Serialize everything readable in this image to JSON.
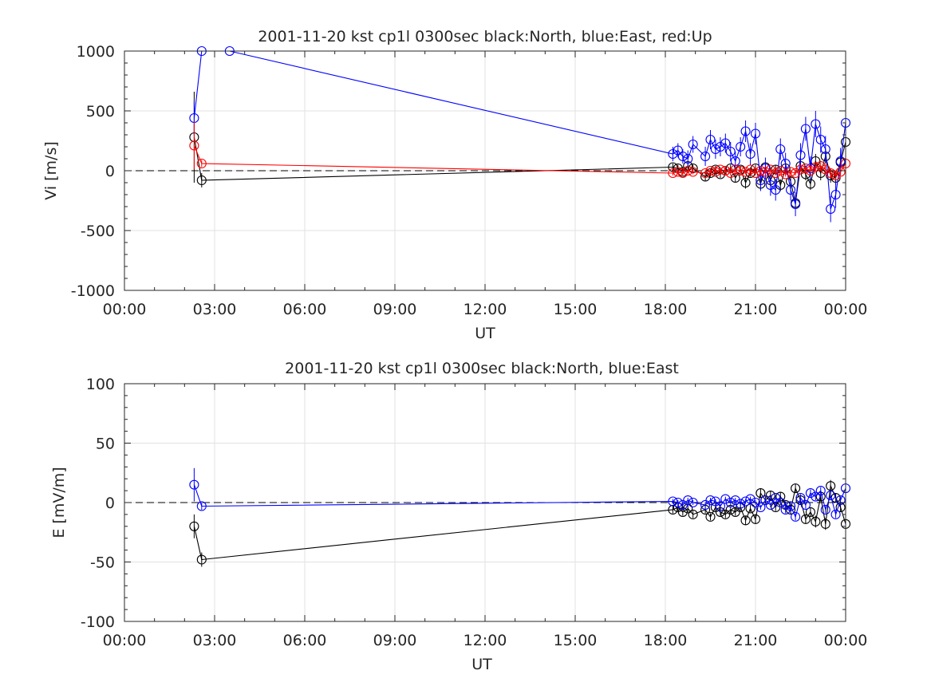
{
  "chart_data": [
    {
      "type": "line",
      "title": "2001-11-20 kst cp1l 0300sec black:North, blue:East, red:Up",
      "xlabel": "UT",
      "ylabel": "Vi [m/s]",
      "xlim": [
        0,
        24
      ],
      "ylim": [
        -1000,
        1000
      ],
      "xticks": [
        0,
        3,
        6,
        9,
        12,
        15,
        18,
        21,
        24
      ],
      "xtick_labels": [
        "00:00",
        "03:00",
        "06:00",
        "09:00",
        "12:00",
        "15:00",
        "18:00",
        "21:00",
        "00:00"
      ],
      "yticks": [
        -1000,
        -500,
        0,
        500,
        1000
      ],
      "ytick_labels": [
        "-1000",
        "-500",
        "0",
        "500",
        "1000"
      ],
      "grid": true,
      "zero_line": true,
      "series": [
        {
          "color": "#000000",
          "x": [
            2.32,
            2.57,
            18.25,
            18.42,
            18.58,
            18.75,
            18.92,
            19.33,
            19.5,
            19.67,
            19.83,
            20.0,
            20.17,
            20.33,
            20.5,
            20.67,
            20.83,
            21.0,
            21.17,
            21.33,
            21.5,
            21.67,
            21.83,
            22.0,
            22.17,
            22.33,
            22.5,
            22.67,
            22.83,
            23.0,
            23.17,
            23.33,
            23.5,
            23.67,
            23.83,
            24.0
          ],
          "y": [
            280,
            -80,
            30,
            20,
            -10,
            40,
            20,
            -50,
            -20,
            10,
            -30,
            0,
            20,
            -60,
            10,
            -100,
            -20,
            20,
            -110,
            30,
            -80,
            10,
            -120,
            20,
            -90,
            -270,
            40,
            -30,
            -110,
            80,
            -20,
            120,
            -40,
            -60,
            70,
            240
          ],
          "err": [
            380,
            60,
            30,
            30,
            30,
            40,
            30,
            40,
            30,
            30,
            30,
            30,
            30,
            40,
            30,
            50,
            30,
            30,
            50,
            40,
            50,
            40,
            50,
            40,
            50,
            50,
            50,
            50,
            50,
            60,
            60,
            60,
            60,
            60,
            60,
            80
          ]
        },
        {
          "color": "#0000ff",
          "x": [
            2.32,
            2.57,
            3.5,
            18.25,
            18.42,
            18.58,
            18.75,
            18.92,
            19.33,
            19.5,
            19.67,
            19.83,
            20.0,
            20.17,
            20.33,
            20.5,
            20.67,
            20.83,
            21.0,
            21.17,
            21.33,
            21.5,
            21.67,
            21.83,
            22.0,
            22.17,
            22.33,
            22.5,
            22.67,
            22.83,
            23.0,
            23.17,
            23.33,
            23.5,
            23.67,
            23.83,
            24.0
          ],
          "y": [
            440,
            1000,
            1000,
            140,
            170,
            120,
            100,
            220,
            120,
            260,
            180,
            200,
            230,
            160,
            80,
            200,
            330,
            140,
            310,
            -80,
            20,
            -120,
            -160,
            180,
            60,
            -160,
            -280,
            130,
            350,
            20,
            390,
            260,
            180,
            -320,
            -200,
            80,
            400
          ],
          "err": [
            140,
            0,
            0,
            60,
            60,
            60,
            70,
            70,
            80,
            80,
            80,
            80,
            80,
            80,
            80,
            80,
            90,
            90,
            90,
            90,
            90,
            90,
            90,
            90,
            90,
            90,
            100,
            100,
            100,
            100,
            110,
            110,
            110,
            110,
            110,
            110,
            110
          ]
        },
        {
          "color": "#ff0000",
          "x": [
            2.32,
            2.57,
            18.25,
            18.42,
            18.58,
            18.75,
            18.92,
            19.33,
            19.5,
            19.67,
            19.83,
            20.0,
            20.17,
            20.33,
            20.5,
            20.67,
            20.83,
            21.0,
            21.17,
            21.33,
            21.5,
            21.67,
            21.83,
            22.0,
            22.17,
            22.33,
            22.5,
            22.67,
            22.83,
            23.0,
            23.17,
            23.33,
            23.5,
            23.67,
            23.83,
            24.0
          ],
          "y": [
            210,
            60,
            -20,
            -10,
            -20,
            0,
            -10,
            -20,
            0,
            -10,
            10,
            0,
            -20,
            10,
            0,
            -10,
            10,
            -20,
            0,
            -10,
            10,
            -20,
            0,
            -30,
            -10,
            -20,
            10,
            20,
            0,
            30,
            40,
            10,
            -20,
            -40,
            -10,
            60
          ],
          "err": [
            200,
            30,
            20,
            20,
            20,
            20,
            20,
            20,
            20,
            20,
            20,
            20,
            20,
            20,
            20,
            20,
            20,
            20,
            20,
            20,
            20,
            20,
            20,
            20,
            20,
            20,
            20,
            20,
            20,
            30,
            30,
            30,
            30,
            30,
            30,
            30
          ]
        }
      ]
    },
    {
      "type": "line",
      "title": "2001-11-20 kst cp1l 0300sec black:North, blue:East",
      "xlabel": "UT",
      "ylabel": "E [mV/m]",
      "xlim": [
        0,
        24
      ],
      "ylim": [
        -100,
        100
      ],
      "xticks": [
        0,
        3,
        6,
        9,
        12,
        15,
        18,
        21,
        24
      ],
      "xtick_labels": [
        "00:00",
        "03:00",
        "06:00",
        "09:00",
        "12:00",
        "15:00",
        "18:00",
        "21:00",
        "00:00"
      ],
      "yticks": [
        -100,
        -50,
        0,
        50,
        100
      ],
      "ytick_labels": [
        "-100",
        "-50",
        "0",
        "50",
        "100"
      ],
      "grid": true,
      "zero_line": true,
      "series": [
        {
          "color": "#000000",
          "x": [
            2.32,
            2.57,
            18.25,
            18.42,
            18.58,
            18.75,
            18.92,
            19.33,
            19.5,
            19.67,
            19.83,
            20.0,
            20.17,
            20.33,
            20.5,
            20.67,
            20.83,
            21.0,
            21.17,
            21.33,
            21.5,
            21.67,
            21.83,
            22.0,
            22.17,
            22.33,
            22.5,
            22.67,
            22.83,
            23.0,
            23.17,
            23.33,
            23.5,
            23.67,
            23.83,
            24.0
          ],
          "y": [
            -20,
            -48,
            -6,
            -4,
            -8,
            -5,
            -10,
            -6,
            -12,
            -4,
            -8,
            -10,
            -6,
            -8,
            -4,
            -15,
            -5,
            -14,
            8,
            2,
            6,
            -4,
            5,
            -2,
            -6,
            12,
            2,
            -14,
            -8,
            -16,
            5,
            -18,
            14,
            4,
            -4,
            -18
          ],
          "err": [
            10,
            6,
            3,
            3,
            3,
            3,
            3,
            3,
            3,
            3,
            3,
            3,
            3,
            3,
            3,
            4,
            3,
            4,
            4,
            3,
            4,
            3,
            4,
            3,
            4,
            4,
            4,
            4,
            4,
            5,
            4,
            5,
            5,
            4,
            4,
            5
          ]
        },
        {
          "color": "#0000ff",
          "x": [
            2.32,
            2.57,
            18.25,
            18.42,
            18.58,
            18.75,
            18.92,
            19.33,
            19.5,
            19.67,
            19.83,
            20.0,
            20.17,
            20.33,
            20.5,
            20.67,
            20.83,
            21.0,
            21.17,
            21.33,
            21.5,
            21.67,
            21.83,
            22.0,
            22.17,
            22.33,
            22.5,
            22.67,
            22.83,
            23.0,
            23.17,
            23.33,
            23.5,
            23.67,
            23.83,
            24.0
          ],
          "y": [
            15,
            -3,
            1,
            0,
            -2,
            2,
            0,
            -2,
            2,
            1,
            -3,
            3,
            0,
            2,
            -1,
            1,
            3,
            0,
            -4,
            2,
            -2,
            4,
            0,
            -6,
            -3,
            -12,
            4,
            -2,
            8,
            5,
            10,
            -6,
            6,
            -10,
            2,
            12
          ],
          "err": [
            14,
            3,
            2,
            2,
            2,
            2,
            2,
            2,
            2,
            2,
            2,
            2,
            2,
            2,
            2,
            2,
            2,
            2,
            2,
            2,
            2,
            2,
            2,
            3,
            3,
            3,
            3,
            3,
            3,
            3,
            3,
            3,
            3,
            3,
            3,
            4
          ]
        }
      ]
    }
  ]
}
